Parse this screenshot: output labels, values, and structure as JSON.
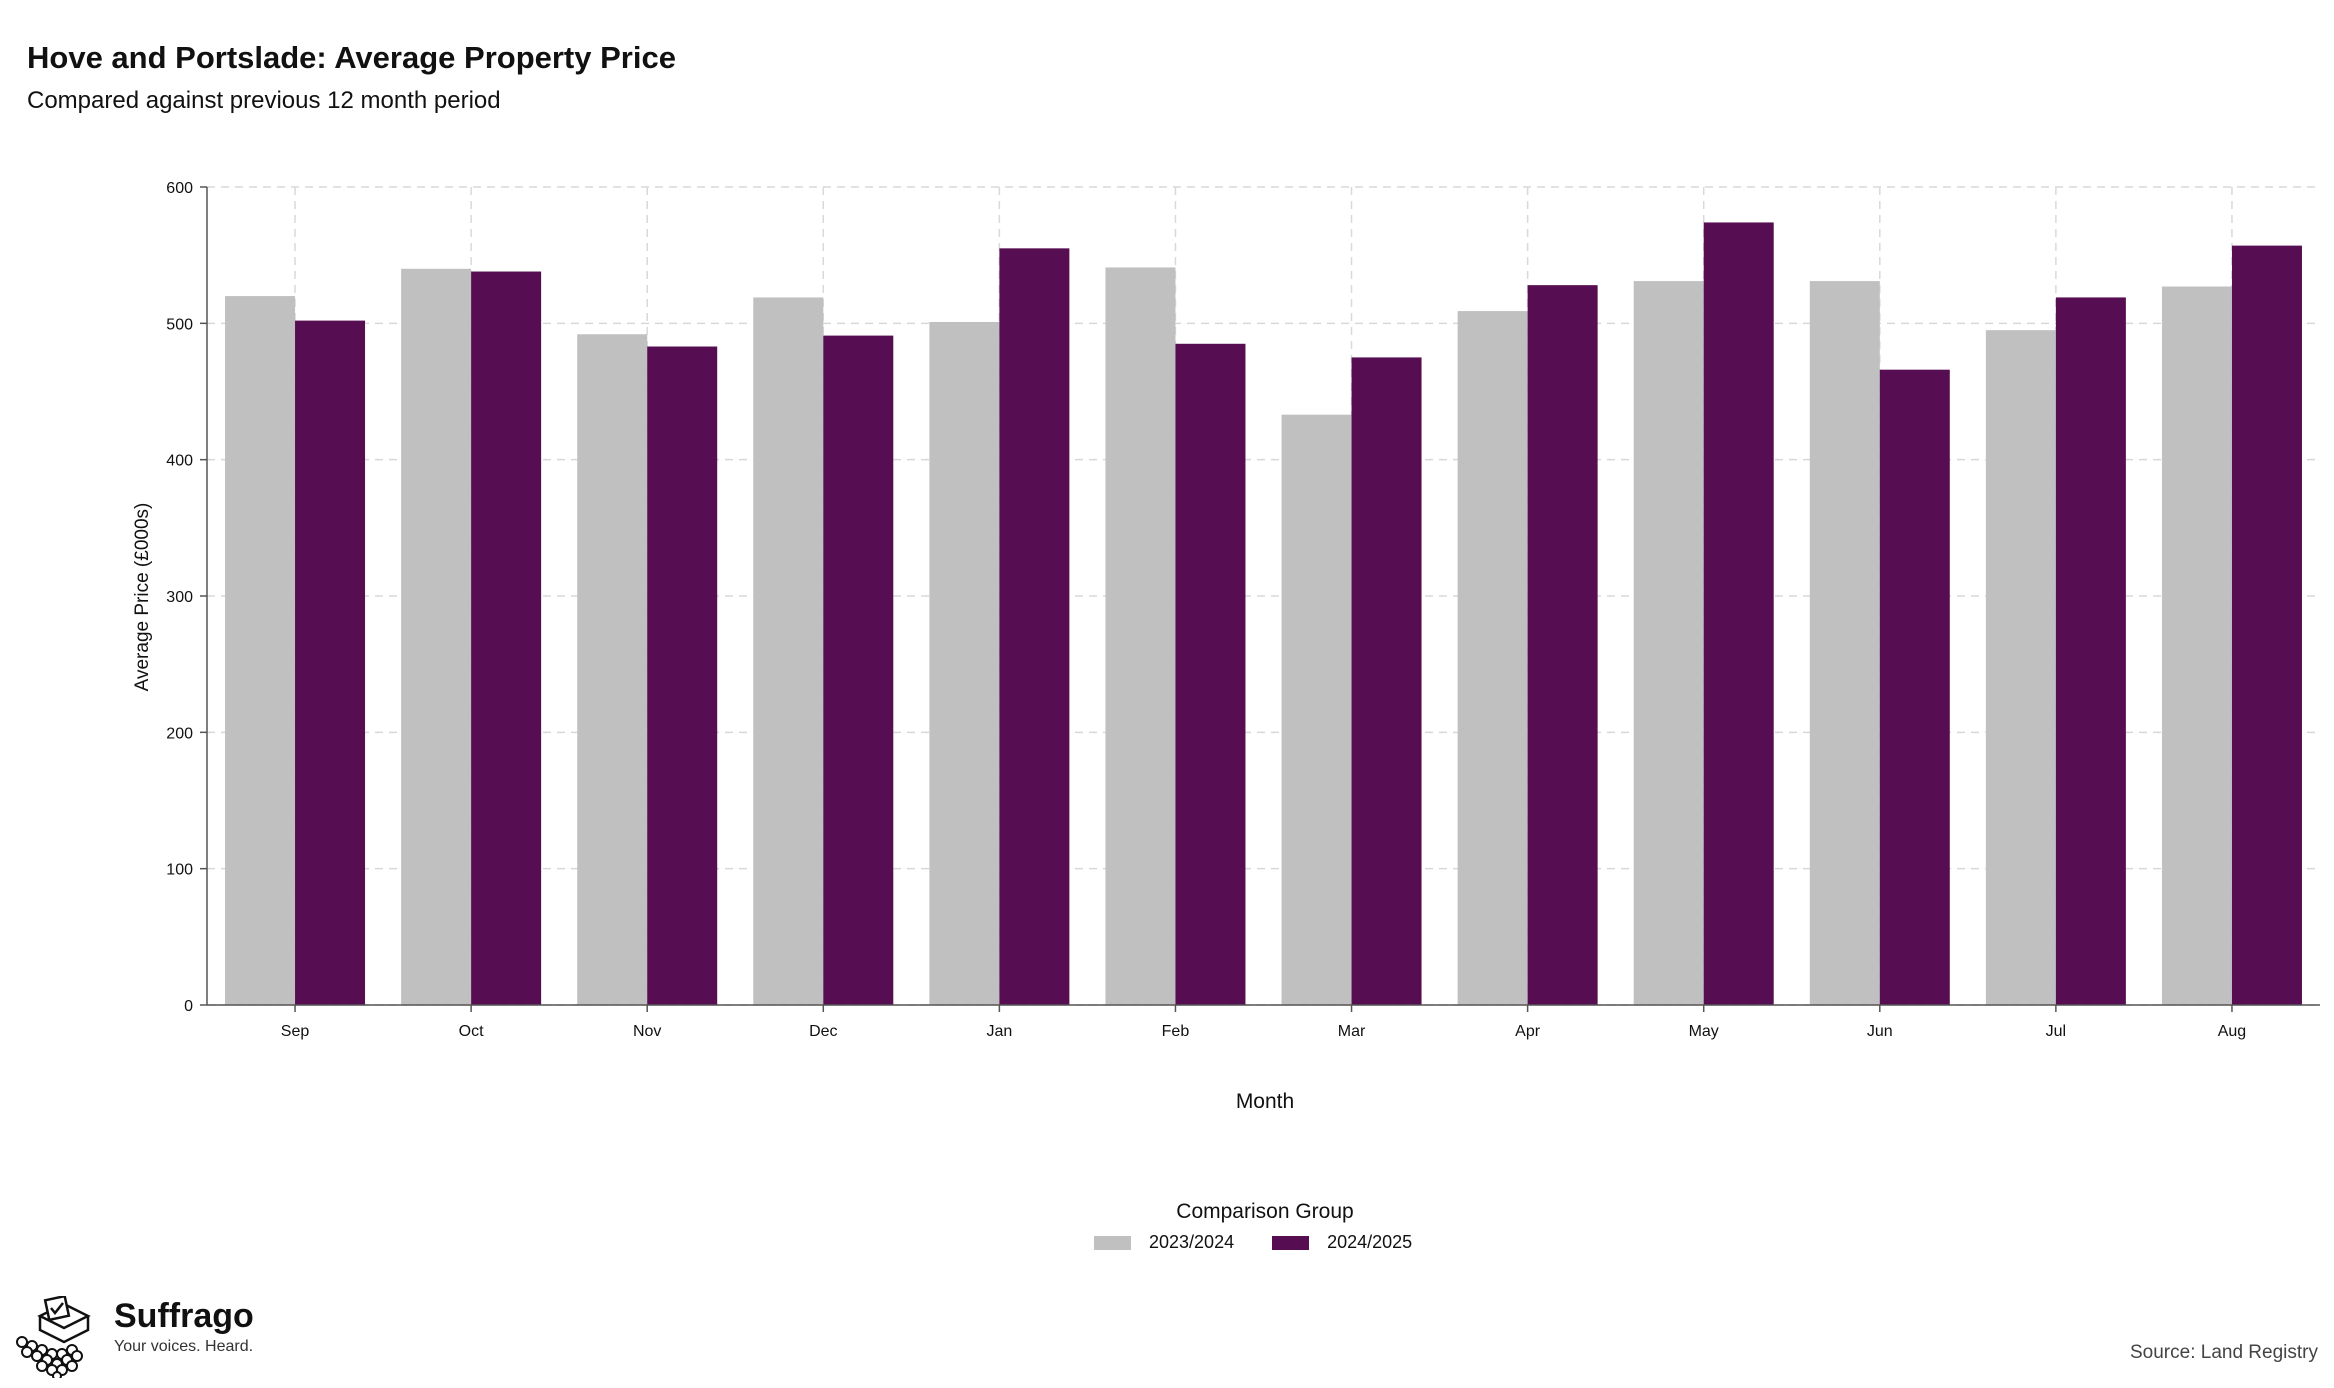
{
  "title": "Hove and Portslade: Average Property Price",
  "subtitle": "Compared against previous 12 month period",
  "legend": {
    "title": "Comparison Group",
    "items": [
      {
        "label": "2023/2024",
        "color": "#c0c0c0"
      },
      {
        "label": "2024/2025",
        "color": "#560d52"
      }
    ]
  },
  "branding": {
    "name": "Suffrago",
    "tagline": "Your voices. Heard."
  },
  "source": "Source: Land Registry",
  "chart_data": {
    "type": "bar",
    "title": "Hove and Portslade: Average Property Price",
    "subtitle": "Compared against previous 12 month period",
    "xlabel": "Month",
    "ylabel": "Average Price (£000s)",
    "categories": [
      "Sep",
      "Oct",
      "Nov",
      "Dec",
      "Jan",
      "Feb",
      "Mar",
      "Apr",
      "May",
      "Jun",
      "Jul",
      "Aug"
    ],
    "series": [
      {
        "name": "2023/2024",
        "color": "#c0c0c0",
        "values": [
          520,
          540,
          492,
          519,
          501,
          541,
          433,
          509,
          531,
          531,
          495,
          527
        ]
      },
      {
        "name": "2024/2025",
        "color": "#560d52",
        "values": [
          502,
          538,
          483,
          491,
          555,
          485,
          475,
          528,
          574,
          466,
          519,
          557
        ]
      }
    ],
    "ylim": [
      0,
      600
    ],
    "yticks": [
      0,
      100,
      200,
      300,
      400,
      500,
      600
    ],
    "grid": true,
    "legend_position": "bottom"
  }
}
